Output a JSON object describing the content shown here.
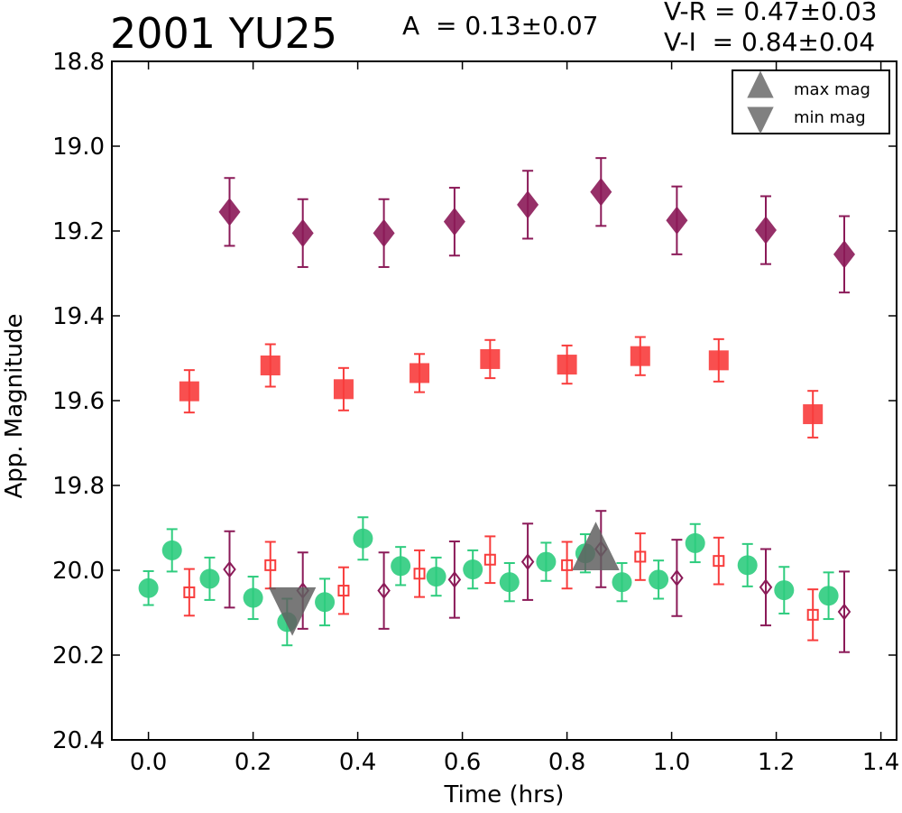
{
  "header": {
    "title": "2001 YU25",
    "amplitude": "A  = 0.13±0.07",
    "color_vr": "V-R = 0.47±0.03",
    "color_vi": "V-I  = 0.84±0.04"
  },
  "chart_data": {
    "type": "scatter",
    "xlabel": "Time (hrs)",
    "ylabel": "App. Magnitude",
    "xlim": [
      -0.07,
      1.43
    ],
    "ylim": [
      20.4,
      18.8
    ],
    "y_inverted": true,
    "grid": false,
    "x_ticks": [
      "0.0",
      "0.2",
      "0.4",
      "0.6",
      "0.8",
      "1.0",
      "1.2",
      "1.4"
    ],
    "y_ticks": [
      "18.8",
      "19.0",
      "19.2",
      "19.4",
      "19.6",
      "19.8",
      "20.0",
      "20.2",
      "20.4"
    ],
    "legend": {
      "placement": "top-right",
      "entries": [
        {
          "label": "max mag",
          "marker": "triangle-up",
          "color": "#808080"
        },
        {
          "label": "min mag",
          "marker": "triangle-down",
          "color": "#808080"
        }
      ]
    },
    "series": [
      {
        "marker": "diamond",
        "filled": true,
        "color": "#8b1a58",
        "points": [
          {
            "x": 0.155,
            "y": 19.155,
            "err": 0.08
          },
          {
            "x": 0.295,
            "y": 19.205,
            "err": 0.08
          },
          {
            "x": 0.45,
            "y": 19.205,
            "err": 0.08
          },
          {
            "x": 0.585,
            "y": 19.178,
            "err": 0.08
          },
          {
            "x": 0.725,
            "y": 19.138,
            "err": 0.08
          },
          {
            "x": 0.865,
            "y": 19.108,
            "err": 0.08
          },
          {
            "x": 1.01,
            "y": 19.175,
            "err": 0.08
          },
          {
            "x": 1.18,
            "y": 19.198,
            "err": 0.08
          },
          {
            "x": 1.33,
            "y": 19.255,
            "err": 0.09
          }
        ]
      },
      {
        "marker": "square",
        "filled": true,
        "color": "#f83c3c",
        "points": [
          {
            "x": 0.078,
            "y": 19.578,
            "err": 0.05
          },
          {
            "x": 0.233,
            "y": 19.517,
            "err": 0.05
          },
          {
            "x": 0.373,
            "y": 19.573,
            "err": 0.05
          },
          {
            "x": 0.518,
            "y": 19.535,
            "err": 0.045
          },
          {
            "x": 0.653,
            "y": 19.502,
            "err": 0.045
          },
          {
            "x": 0.8,
            "y": 19.515,
            "err": 0.045
          },
          {
            "x": 0.94,
            "y": 19.495,
            "err": 0.045
          },
          {
            "x": 1.09,
            "y": 19.505,
            "err": 0.05
          },
          {
            "x": 1.27,
            "y": 19.632,
            "err": 0.055
          }
        ]
      },
      {
        "marker": "circle",
        "filled": true,
        "color": "#2ecc7e",
        "points": [
          {
            "x": 0.0,
            "y": 20.042,
            "err": 0.04
          },
          {
            "x": 0.045,
            "y": 19.953,
            "err": 0.05
          },
          {
            "x": 0.117,
            "y": 20.02,
            "err": 0.05
          },
          {
            "x": 0.2,
            "y": 20.065,
            "err": 0.05
          },
          {
            "x": 0.265,
            "y": 20.122,
            "err": 0.055
          },
          {
            "x": 0.337,
            "y": 20.075,
            "err": 0.055
          },
          {
            "x": 0.41,
            "y": 19.925,
            "err": 0.05
          },
          {
            "x": 0.482,
            "y": 19.99,
            "err": 0.045
          },
          {
            "x": 0.55,
            "y": 20.015,
            "err": 0.045
          },
          {
            "x": 0.62,
            "y": 19.998,
            "err": 0.045
          },
          {
            "x": 0.69,
            "y": 20.028,
            "err": 0.045
          },
          {
            "x": 0.76,
            "y": 19.98,
            "err": 0.045
          },
          {
            "x": 0.835,
            "y": 19.96,
            "err": 0.045
          },
          {
            "x": 0.905,
            "y": 20.028,
            "err": 0.045
          },
          {
            "x": 0.975,
            "y": 20.022,
            "err": 0.045
          },
          {
            "x": 1.045,
            "y": 19.936,
            "err": 0.045
          },
          {
            "x": 1.145,
            "y": 19.988,
            "err": 0.05
          },
          {
            "x": 1.215,
            "y": 20.047,
            "err": 0.055
          },
          {
            "x": 1.3,
            "y": 20.06,
            "err": 0.055
          }
        ]
      },
      {
        "marker": "square",
        "filled": false,
        "color": "#f83c3c",
        "points": [
          {
            "x": 0.078,
            "y": 20.052,
            "err": 0.055
          },
          {
            "x": 0.233,
            "y": 19.988,
            "err": 0.055
          },
          {
            "x": 0.373,
            "y": 20.048,
            "err": 0.055
          },
          {
            "x": 0.518,
            "y": 20.008,
            "err": 0.055
          },
          {
            "x": 0.653,
            "y": 19.975,
            "err": 0.055
          },
          {
            "x": 0.8,
            "y": 19.988,
            "err": 0.055
          },
          {
            "x": 0.94,
            "y": 19.968,
            "err": 0.055
          },
          {
            "x": 1.09,
            "y": 19.978,
            "err": 0.055
          },
          {
            "x": 1.27,
            "y": 20.105,
            "err": 0.06
          }
        ]
      },
      {
        "marker": "diamond",
        "filled": false,
        "color": "#8b1a58",
        "points": [
          {
            "x": 0.155,
            "y": 19.998,
            "err": 0.09
          },
          {
            "x": 0.295,
            "y": 20.048,
            "err": 0.09
          },
          {
            "x": 0.45,
            "y": 20.048,
            "err": 0.09
          },
          {
            "x": 0.585,
            "y": 20.022,
            "err": 0.09
          },
          {
            "x": 0.725,
            "y": 19.98,
            "err": 0.09
          },
          {
            "x": 0.865,
            "y": 19.95,
            "err": 0.09
          },
          {
            "x": 1.01,
            "y": 20.018,
            "err": 0.09
          },
          {
            "x": 1.18,
            "y": 20.04,
            "err": 0.09
          },
          {
            "x": 1.33,
            "y": 20.098,
            "err": 0.095
          }
        ]
      },
      {
        "marker": "triangle-down",
        "filled": true,
        "color": "#606060",
        "opacity": 0.85,
        "points": [
          {
            "x": 0.275,
            "y": 20.08
          }
        ]
      },
      {
        "marker": "triangle-up",
        "filled": true,
        "color": "#606060",
        "opacity": 0.85,
        "points": [
          {
            "x": 0.855,
            "y": 19.96
          }
        ]
      }
    ]
  }
}
